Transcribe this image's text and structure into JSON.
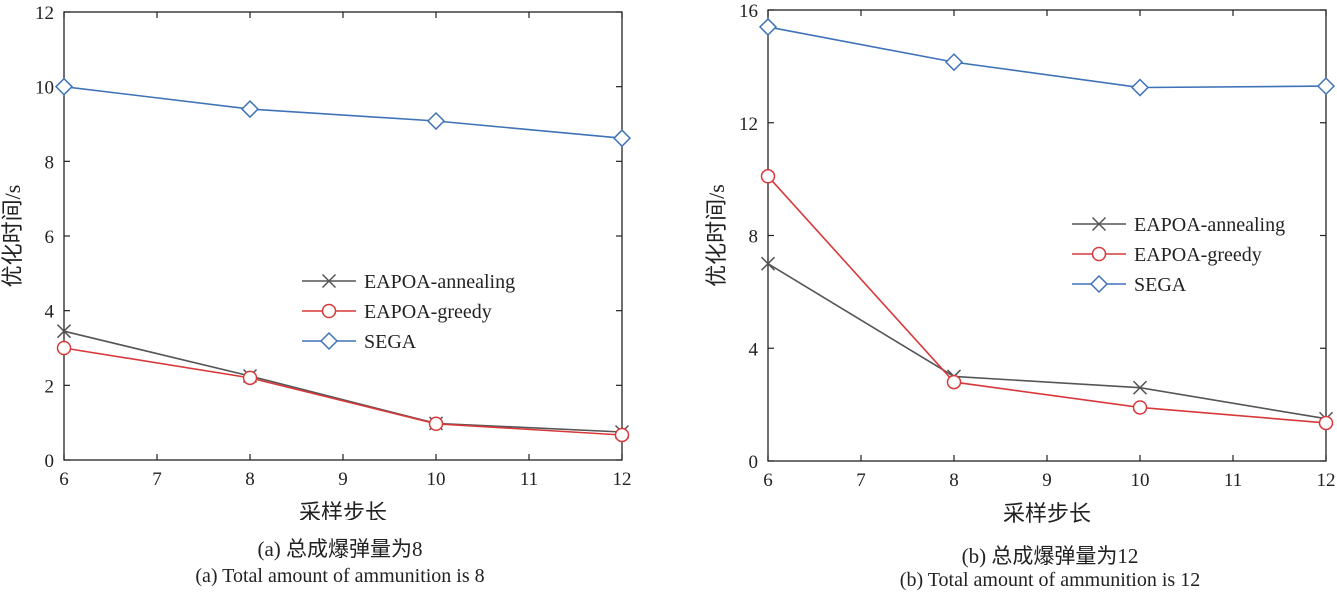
{
  "chart_data": [
    {
      "type": "line",
      "panel": "a",
      "x": [
        6,
        8,
        10,
        12
      ],
      "xlabel": "采样步长",
      "ylabel": "优化时间/s",
      "xlim": [
        6,
        12
      ],
      "ylim": [
        0,
        12
      ],
      "xticks": [
        6,
        7,
        8,
        9,
        10,
        11,
        12
      ],
      "yticks": [
        0,
        2,
        4,
        6,
        8,
        10,
        12
      ],
      "grid": false,
      "legend_position": "center-right",
      "caption_zh": "(a) 总成爆弹量为8",
      "caption_en": "(a) Total amount of ammunition is 8",
      "series": [
        {
          "name": "EAPOA-annealing",
          "values": [
            3.45,
            2.25,
            0.98,
            0.75
          ],
          "color": "#555555",
          "marker": "x"
        },
        {
          "name": "EAPOA-greedy",
          "values": [
            3.0,
            2.2,
            0.97,
            0.67
          ],
          "color": "#d9383a",
          "marker": "circle"
        },
        {
          "name": "SEGA",
          "values": [
            10.0,
            9.4,
            9.08,
            8.62
          ],
          "color": "#3f73b8",
          "marker": "diamond"
        }
      ]
    },
    {
      "type": "line",
      "panel": "b",
      "x": [
        6,
        8,
        10,
        12
      ],
      "xlabel": "采样步长",
      "ylabel": "优化时间/s",
      "xlim": [
        6,
        12
      ],
      "ylim": [
        0,
        16
      ],
      "xticks": [
        6,
        7,
        8,
        9,
        10,
        11,
        12
      ],
      "yticks": [
        0,
        4,
        8,
        12,
        16
      ],
      "grid": false,
      "legend_position": "center-right",
      "caption_zh": "(b) 总成爆弹量为12",
      "caption_en": "(b) Total amount of ammunition is 12",
      "series": [
        {
          "name": "EAPOA-annealing",
          "values": [
            7.0,
            3.0,
            2.6,
            1.5
          ],
          "color": "#555555",
          "marker": "x"
        },
        {
          "name": "EAPOA-greedy",
          "values": [
            10.1,
            2.8,
            1.9,
            1.35
          ],
          "color": "#d9383a",
          "marker": "circle"
        },
        {
          "name": "SEGA",
          "values": [
            15.4,
            14.15,
            13.25,
            13.3
          ],
          "color": "#3f73b8",
          "marker": "diamond"
        }
      ]
    }
  ]
}
